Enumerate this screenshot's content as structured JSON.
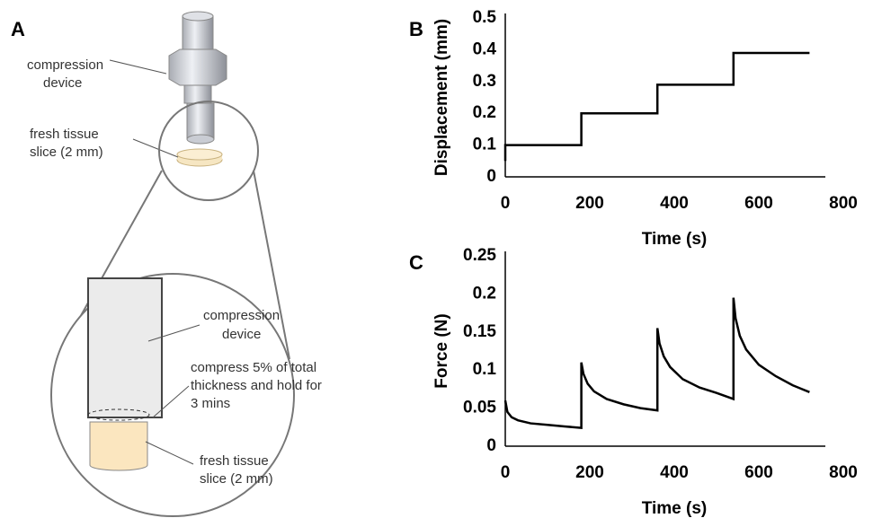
{
  "panel_a": {
    "label": "A",
    "device_label": [
      "compression",
      "device"
    ],
    "slice_label": [
      "fresh tissue",
      "slice (2 mm)"
    ],
    "inset_device_label": [
      "compression",
      "device"
    ],
    "inset_compress_label": [
      "compress 5% of total",
      "thickness and hold for",
      "3 mins"
    ],
    "inset_slice_label": [
      "fresh tissue",
      "slice (2 mm)"
    ]
  },
  "chart_data": [
    {
      "type": "line",
      "panel_label": "B",
      "x_label": "Time (s)",
      "y_label": "Displacement (mm)",
      "xlim": [
        0,
        800
      ],
      "xticks": [
        0,
        200,
        400,
        600,
        800
      ],
      "ylim": [
        0,
        0.5
      ],
      "yticks": [
        0,
        0.1,
        0.2,
        0.3,
        0.4,
        0.5
      ],
      "series": [
        {
          "color": "#000000",
          "x": [
            0,
            0,
            180,
            180,
            360,
            360,
            540,
            540,
            720
          ],
          "values": [
            0.05,
            0.1,
            0.1,
            0.2,
            0.2,
            0.29,
            0.29,
            0.39,
            0.39
          ]
        }
      ]
    },
    {
      "type": "line",
      "panel_label": "C",
      "x_label": "Time (s)",
      "y_label": "Force (N)",
      "xlim": [
        0,
        800
      ],
      "xticks": [
        0,
        200,
        400,
        600,
        800
      ],
      "ylim": [
        0,
        0.25
      ],
      "yticks": [
        0,
        0.05,
        0.1,
        0.15,
        0.2,
        0.25
      ],
      "series": [
        {
          "color": "#000000",
          "x": [
            0,
            5,
            15,
            30,
            60,
            100,
            140,
            180,
            180,
            185,
            195,
            210,
            240,
            280,
            320,
            360,
            360,
            365,
            375,
            390,
            420,
            460,
            500,
            540,
            540,
            545,
            555,
            570,
            600,
            640,
            680,
            720
          ],
          "values": [
            0.06,
            0.045,
            0.038,
            0.034,
            0.03,
            0.028,
            0.026,
            0.024,
            0.11,
            0.095,
            0.082,
            0.072,
            0.062,
            0.055,
            0.05,
            0.047,
            0.155,
            0.135,
            0.118,
            0.104,
            0.088,
            0.077,
            0.07,
            0.062,
            0.195,
            0.168,
            0.145,
            0.127,
            0.107,
            0.092,
            0.08,
            0.071
          ]
        }
      ]
    }
  ]
}
